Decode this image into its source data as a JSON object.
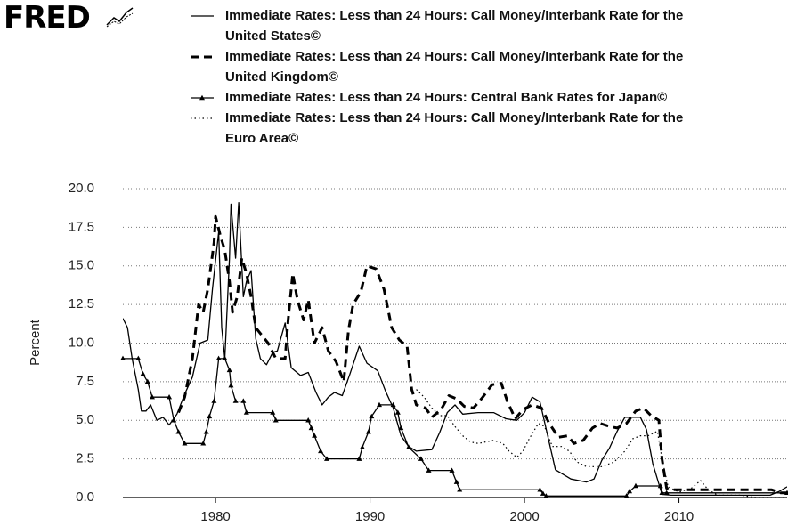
{
  "logo": "FRED",
  "chart_data": {
    "type": "line",
    "ylabel": "Percent",
    "xlim": [
      1974,
      2017
    ],
    "xticks": [
      1980,
      1990,
      2000,
      2010
    ],
    "ylim": [
      0,
      20
    ],
    "yticks": [
      {
        "value": 0,
        "label": "0.0"
      },
      {
        "value": 2.5,
        "label": "2.5"
      },
      {
        "value": 5,
        "label": "5.0"
      },
      {
        "value": 7.5,
        "label": "7.5"
      },
      {
        "value": 10,
        "label": "10.0"
      },
      {
        "value": 12.5,
        "label": "12.5"
      },
      {
        "value": 15,
        "label": "15.0"
      },
      {
        "value": 17.5,
        "label": "17.5"
      },
      {
        "value": 20,
        "label": "20.0"
      }
    ],
    "grid": true,
    "series": [
      {
        "name": "Immediate Rates: Less than 24 Hours: Call Money/Interbank Rate for the United States©",
        "color": "#000000",
        "line_style": "solid",
        "x": [
          1974.0,
          1974.3,
          1974.6,
          1975.0,
          1975.2,
          1975.5,
          1975.8,
          1976.2,
          1976.6,
          1977.0,
          1977.5,
          1978.0,
          1978.5,
          1979.0,
          1979.5,
          1979.8,
          1980.2,
          1980.4,
          1980.6,
          1980.9,
          1981.0,
          1981.3,
          1981.5,
          1981.8,
          1982.0,
          1982.3,
          1982.6,
          1982.9,
          1983.3,
          1983.7,
          1984.0,
          1984.5,
          1984.9,
          1985.5,
          1986.0,
          1986.5,
          1986.9,
          1987.3,
          1987.7,
          1988.2,
          1988.7,
          1989.3,
          1989.8,
          1990.5,
          1991.0,
          1991.5,
          1992.0,
          1992.5,
          1993.0,
          1994.0,
          1994.5,
          1995.0,
          1995.5,
          1996.0,
          1997.0,
          1998.0,
          1998.8,
          1999.5,
          2000.0,
          2000.5,
          2001.0,
          2001.5,
          2002.0,
          2003.0,
          2004.0,
          2004.5,
          2005.0,
          2005.5,
          2006.0,
          2006.5,
          2007.5,
          2007.9,
          2008.3,
          2008.9,
          2009.5,
          2015.9,
          2016.5,
          2017.0
        ],
        "values": [
          11.6,
          11.0,
          9.0,
          7.0,
          5.6,
          5.6,
          6.0,
          5.0,
          5.2,
          4.7,
          5.4,
          6.7,
          7.8,
          10.0,
          10.2,
          13.5,
          17.2,
          11.0,
          9.0,
          15.5,
          19.0,
          15.5,
          19.1,
          13.0,
          14.0,
          14.7,
          10.3,
          9.0,
          8.6,
          9.4,
          9.5,
          11.3,
          8.4,
          7.9,
          8.1,
          6.8,
          6.0,
          6.5,
          6.8,
          6.6,
          8.0,
          9.8,
          8.7,
          8.2,
          6.9,
          5.8,
          4.0,
          3.3,
          3.0,
          3.1,
          4.2,
          5.5,
          6.0,
          5.4,
          5.5,
          5.5,
          5.1,
          5.0,
          5.5,
          6.5,
          6.2,
          4.0,
          1.8,
          1.2,
          1.0,
          1.2,
          2.4,
          3.2,
          4.3,
          5.2,
          5.2,
          4.4,
          2.2,
          0.2,
          0.15,
          0.15,
          0.4,
          0.7
        ]
      },
      {
        "name": "Immediate Rates: Less than 24 Hours: Call Money/Interbank Rate for the United Kingdom©",
        "color": "#000000",
        "line_style": "dashed",
        "x": [
          1977.6,
          1978.0,
          1978.5,
          1978.9,
          1979.2,
          1979.5,
          1979.9,
          1980.0,
          1980.3,
          1980.6,
          1980.9,
          1981.1,
          1981.4,
          1981.7,
          1982.0,
          1982.3,
          1982.6,
          1983.0,
          1983.4,
          1983.9,
          1984.5,
          1984.7,
          1985.0,
          1985.3,
          1985.7,
          1986.0,
          1986.4,
          1986.9,
          1987.3,
          1987.8,
          1988.3,
          1988.6,
          1988.9,
          1989.4,
          1989.8,
          1990.4,
          1990.9,
          1991.4,
          1991.9,
          1992.4,
          1992.7,
          1993.0,
          1993.6,
          1994.0,
          1994.6,
          1995.1,
          1995.6,
          1996.1,
          1996.7,
          1997.3,
          1997.9,
          1998.5,
          1998.9,
          1999.4,
          1999.9,
          2000.5,
          2001.1,
          2001.6,
          2002.2,
          2002.8,
          2003.2,
          2003.8,
          2004.4,
          2004.9,
          2005.5,
          2006.0,
          2006.6,
          2007.2,
          2007.7,
          2008.2,
          2008.7,
          2008.9,
          2009.2,
          2009.6,
          2016.0,
          2016.6,
          2017.0
        ],
        "values": [
          5.5,
          6.5,
          9.0,
          12.5,
          12.0,
          13.5,
          16.5,
          18.2,
          17.0,
          16.0,
          14.0,
          12.0,
          13.0,
          15.5,
          14.5,
          13.0,
          11.0,
          10.5,
          10.0,
          9.0,
          9.0,
          11.5,
          14.5,
          12.8,
          11.5,
          12.8,
          10.0,
          11.0,
          9.5,
          8.8,
          7.5,
          10.8,
          12.5,
          13.3,
          15.0,
          14.8,
          13.5,
          11.0,
          10.2,
          9.8,
          7.0,
          6.0,
          5.8,
          5.2,
          5.7,
          6.6,
          6.4,
          5.9,
          5.8,
          6.5,
          7.3,
          7.4,
          6.2,
          5.1,
          5.7,
          6.0,
          5.8,
          4.8,
          3.9,
          4.0,
          3.5,
          3.7,
          4.5,
          4.8,
          4.6,
          4.5,
          4.8,
          5.6,
          5.8,
          5.3,
          5.0,
          2.5,
          0.6,
          0.5,
          0.5,
          0.3,
          0.3
        ]
      },
      {
        "name": "Immediate Rates: Less than 24 Hours: Central Bank Rates for Japan©",
        "color": "#000000",
        "line_style": "solid",
        "marker": "triangle",
        "x": [
          1974.0,
          1975.0,
          1975.3,
          1975.6,
          1975.9,
          1977.0,
          1977.3,
          1977.6,
          1978.0,
          1979.2,
          1979.4,
          1979.6,
          1979.9,
          1980.2,
          1980.6,
          1980.9,
          1981.0,
          1981.3,
          1981.8,
          1982.0,
          1983.7,
          1983.9,
          1986.0,
          1986.2,
          1986.4,
          1986.8,
          1987.2,
          1989.3,
          1989.5,
          1989.9,
          1990.1,
          1990.6,
          1991.5,
          1991.8,
          1992.0,
          1992.5,
          1993.3,
          1993.8,
          1995.3,
          1995.6,
          1995.8,
          2001.0,
          2001.2,
          2001.4,
          2006.6,
          2006.8,
          2007.2,
          2008.8,
          2008.9,
          2009.2,
          2017.0
        ],
        "values": [
          9.0,
          9.0,
          8.0,
          7.5,
          6.5,
          6.5,
          5.0,
          4.25,
          3.5,
          3.5,
          4.25,
          5.25,
          6.25,
          9.0,
          9.0,
          8.25,
          7.25,
          6.25,
          6.25,
          5.5,
          5.5,
          5.0,
          5.0,
          4.5,
          4.0,
          3.0,
          2.5,
          2.5,
          3.25,
          4.25,
          5.25,
          6.0,
          6.0,
          5.5,
          4.5,
          3.25,
          2.5,
          1.75,
          1.75,
          1.0,
          0.5,
          0.5,
          0.25,
          0.1,
          0.1,
          0.4,
          0.75,
          0.75,
          0.3,
          0.3,
          0.3
        ]
      },
      {
        "name": "Immediate Rates: Less than 24 Hours: Call Money/Interbank Rate for the Euro Area©",
        "color": "#000000",
        "line_style": "dotted",
        "x": [
          1993.0,
          1993.5,
          1994.0,
          1994.5,
          1995.0,
          1995.5,
          1996.0,
          1996.5,
          1997.0,
          1997.5,
          1998.0,
          1998.6,
          1999.0,
          1999.5,
          1999.9,
          2000.3,
          2000.9,
          2001.3,
          2001.8,
          2002.4,
          2002.9,
          2003.4,
          2004.0,
          2005.0,
          2005.8,
          2006.5,
          2007.0,
          2007.5,
          2008.0,
          2008.6,
          2008.9,
          2009.3,
          2010.0,
          2010.8,
          2011.4,
          2011.9,
          2012.5,
          2014.0,
          2015.0,
          2017.0
        ],
        "values": [
          7.0,
          6.5,
          5.8,
          5.3,
          5.3,
          4.6,
          4.0,
          3.6,
          3.5,
          3.6,
          3.7,
          3.5,
          3.0,
          2.6,
          3.0,
          3.8,
          4.8,
          4.6,
          3.3,
          3.3,
          3.0,
          2.3,
          2.0,
          2.0,
          2.3,
          3.0,
          3.8,
          4.0,
          4.0,
          4.3,
          2.5,
          0.7,
          0.35,
          0.6,
          1.1,
          0.5,
          0.15,
          0.15,
          0.0,
          0.0
        ]
      }
    ]
  }
}
